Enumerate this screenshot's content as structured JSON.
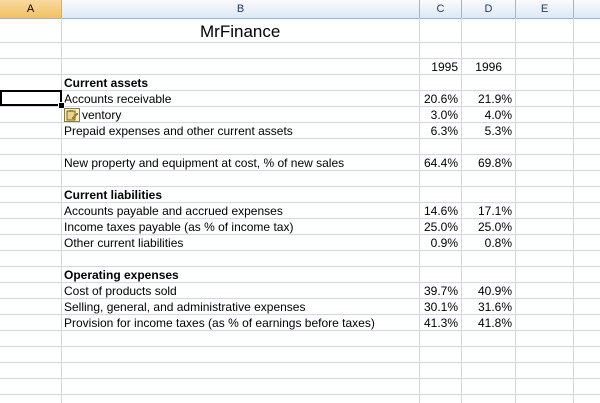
{
  "columns": [
    "A",
    "B",
    "C",
    "D",
    "E"
  ],
  "title": "MrFinance",
  "years": [
    "1995",
    "1996"
  ],
  "sections": [
    {
      "heading": "Current assets",
      "rows": [
        {
          "label": "Accounts receivable",
          "v1995": "20.6%",
          "v1996": "21.9%"
        },
        {
          "label": "ventory",
          "v1995": "3.0%",
          "v1996": "4.0%"
        },
        {
          "label": "Prepaid expenses and other current assets",
          "v1995": "6.3%",
          "v1996": "5.3%"
        }
      ]
    },
    {
      "heading": "",
      "rows": [
        {
          "label": "New property and equipment at cost, % of new sales",
          "v1995": "64.4%",
          "v1996": "69.8%"
        }
      ]
    },
    {
      "heading": "Current liabilities",
      "rows": [
        {
          "label": "Accounts payable and accrued expenses",
          "v1995": "14.6%",
          "v1996": "17.1%"
        },
        {
          "label": "Income taxes payable (as % of income tax)",
          "v1995": "25.0%",
          "v1996": "25.0%"
        },
        {
          "label": "Other current liabilities",
          "v1995": "0.9%",
          "v1996": "0.8%"
        }
      ]
    },
    {
      "heading": "Operating expenses",
      "rows": [
        {
          "label": "Cost of products sold",
          "v1995": "39.7%",
          "v1996": "40.9%"
        },
        {
          "label": "Selling, general, and administrative expenses",
          "v1995": "30.1%",
          "v1996": "31.6%"
        },
        {
          "label": "Provision for income taxes (as % of earnings before taxes)",
          "v1995": "41.3%",
          "v1996": "41.8%"
        }
      ]
    }
  ],
  "colors": {
    "grid": "#d0d7e5",
    "header_border": "#9eb6ce",
    "selected_header": "#f1c15f"
  }
}
